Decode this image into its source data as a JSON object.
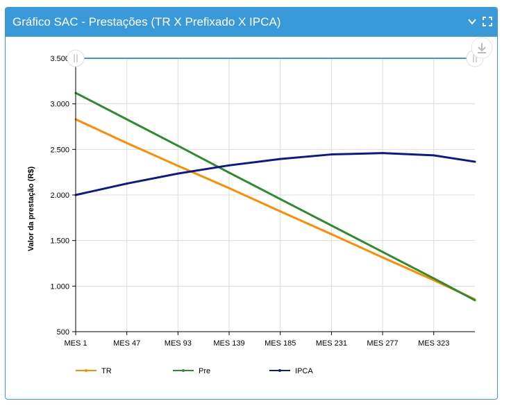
{
  "panel": {
    "title": "Gráfico SAC - Prestações (TR X Prefixado X IPCA)",
    "accent_color": "#3a9ad9",
    "collapse_icon": "chevron-down-icon",
    "expand_icon": "fullscreen-icon",
    "download_icon": "download-icon"
  },
  "chart_data": {
    "type": "line",
    "xlabel": "",
    "ylabel": "Valor da prestação (R$)",
    "x_ticks": [
      "MES 1",
      "MES 47",
      "MES 93",
      "MES 139",
      "MES 185",
      "MES 231",
      "MES 277",
      "MES 323"
    ],
    "x_range": [
      1,
      360
    ],
    "y_ticks": [
      "500",
      "1.000",
      "1.500",
      "2.000",
      "2.500",
      "3.000",
      "3.500"
    ],
    "ylim": [
      500,
      3500
    ],
    "grid": true,
    "legend_position": "bottom",
    "series": [
      {
        "name": "TR",
        "color": "#ff8c00",
        "points": [
          [
            1,
            2830
          ],
          [
            47,
            2570
          ],
          [
            93,
            2320
          ],
          [
            139,
            2075
          ],
          [
            185,
            1820
          ],
          [
            231,
            1570
          ],
          [
            277,
            1315
          ],
          [
            323,
            1065
          ],
          [
            360,
            855
          ]
        ]
      },
      {
        "name": "Pre",
        "color": "#2e8b2e",
        "points": [
          [
            1,
            3120
          ],
          [
            47,
            2830
          ],
          [
            93,
            2540
          ],
          [
            139,
            2245
          ],
          [
            185,
            1955
          ],
          [
            231,
            1665
          ],
          [
            277,
            1375
          ],
          [
            323,
            1085
          ],
          [
            360,
            845
          ]
        ]
      },
      {
        "name": "IPCA",
        "color": "#0a1a8c",
        "points": [
          [
            1,
            2000
          ],
          [
            47,
            2125
          ],
          [
            93,
            2235
          ],
          [
            139,
            2325
          ],
          [
            185,
            2395
          ],
          [
            231,
            2445
          ],
          [
            277,
            2460
          ],
          [
            323,
            2435
          ],
          [
            360,
            2365
          ]
        ]
      }
    ],
    "navigator_color": "#3a9ad9"
  }
}
